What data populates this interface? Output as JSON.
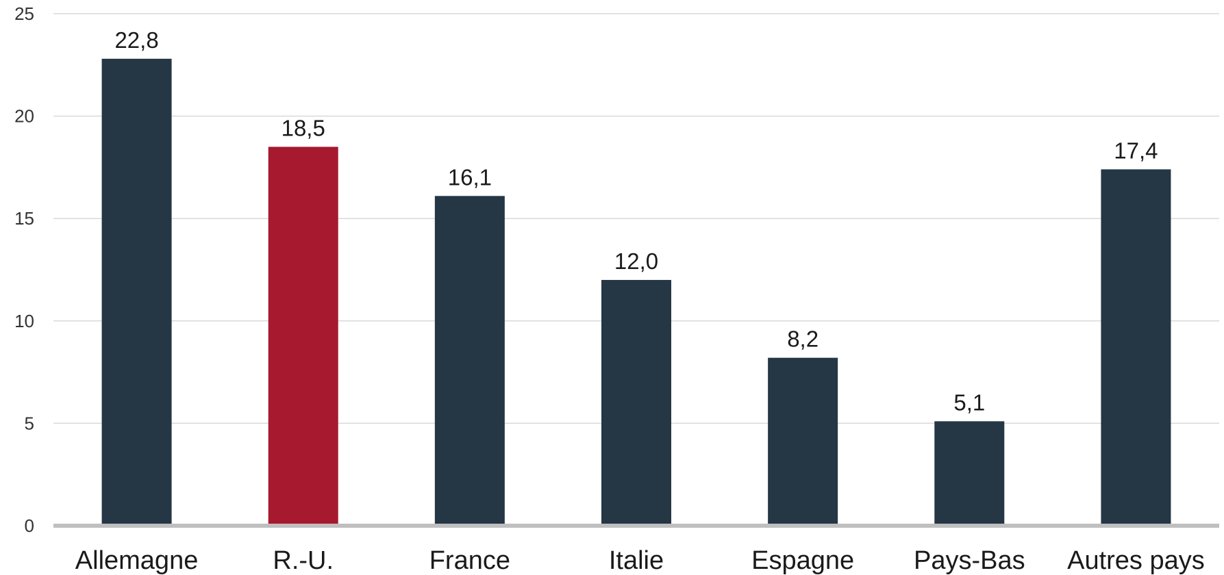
{
  "chart_data": {
    "type": "bar",
    "title": "",
    "xlabel": "",
    "ylabel": "",
    "ylim": [
      0,
      25
    ],
    "yticks": [
      0,
      5,
      10,
      15,
      20,
      25
    ],
    "grid": true,
    "categories": [
      "Allemagne",
      "R.-U.",
      "France",
      "Italie",
      "Espagne",
      "Pays-Bas",
      "Autres pays"
    ],
    "values": [
      22.8,
      18.5,
      16.1,
      12.0,
      8.2,
      5.1,
      17.4
    ],
    "data_labels": [
      "22,8",
      "18,5",
      "16,1",
      "12,0",
      "8,2",
      "5,1",
      "17,4"
    ],
    "colors": {
      "default_bar": "#253645",
      "highlight_bar": "#a6192e",
      "highlight_category": "R.-U."
    }
  }
}
